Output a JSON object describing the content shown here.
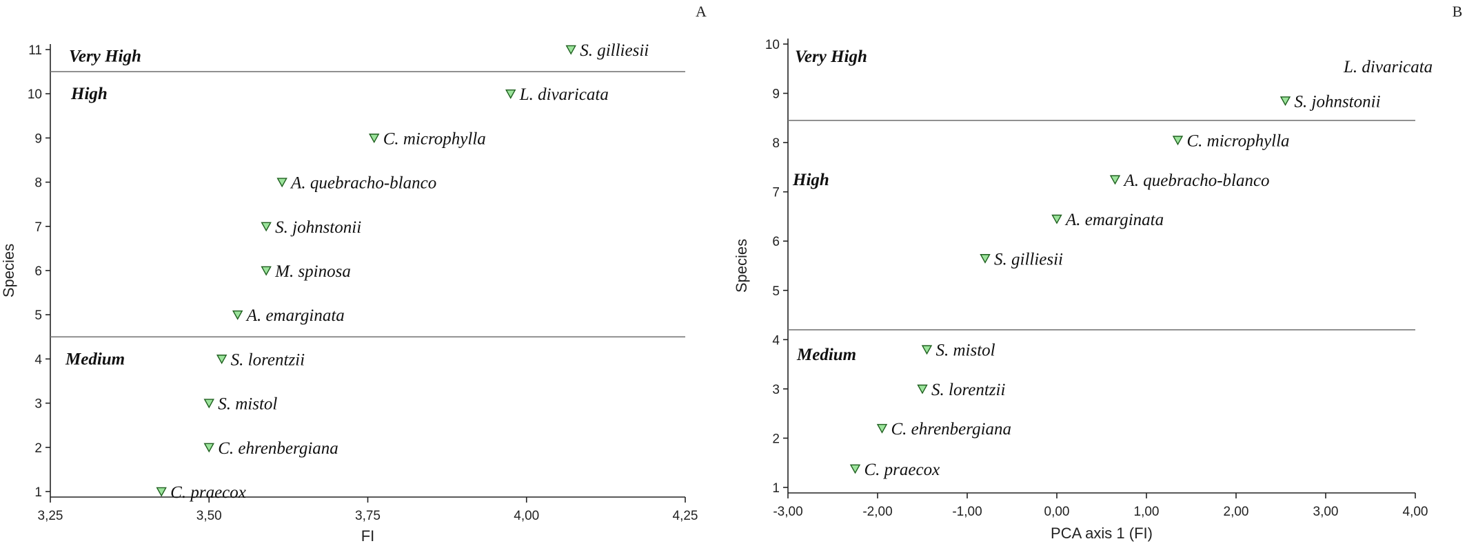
{
  "chart_data": [
    {
      "type": "scatter",
      "panel_label": "A",
      "xlabel": "FI",
      "ylabel": "Species",
      "xlim": [
        3.25,
        4.25
      ],
      "ylim": [
        1,
        11
      ],
      "xticks": [
        3.25,
        3.5,
        3.75,
        4.0,
        4.25
      ],
      "xtick_labels": [
        "3,25",
        "3,50",
        "3,75",
        "4,00",
        "4,25"
      ],
      "yticks": [
        1,
        2,
        3,
        4,
        5,
        6,
        7,
        8,
        9,
        10,
        11
      ],
      "ytick_labels": [
        "1",
        "2",
        "3",
        "4",
        "5",
        "6",
        "7",
        "8",
        "9",
        "10",
        "11"
      ],
      "grid": false,
      "thresholds": [
        10.5,
        4.5
      ],
      "zones": [
        {
          "label": "Very High",
          "y": 10.85
        },
        {
          "label": "High",
          "y": 10.0
        },
        {
          "label": "Medium",
          "y": 4.0
        }
      ],
      "points": [
        {
          "label": "S. gilliesii",
          "x": 4.07,
          "y": 11.0
        },
        {
          "label": "L. divaricata",
          "x": 3.975,
          "y": 10.0
        },
        {
          "label": "C. microphylla",
          "x": 3.76,
          "y": 9.0
        },
        {
          "label": "A. quebracho-blanco",
          "x": 3.615,
          "y": 8.0
        },
        {
          "label": "S. johnstonii",
          "x": 3.59,
          "y": 7.0
        },
        {
          "label": "M. spinosa",
          "x": 3.59,
          "y": 6.0
        },
        {
          "label": "A. emarginata",
          "x": 3.545,
          "y": 5.0
        },
        {
          "label": "S. lorentzii",
          "x": 3.52,
          "y": 4.0
        },
        {
          "label": "S. mistol",
          "x": 3.5,
          "y": 3.0
        },
        {
          "label": "C. ehrenbergiana",
          "x": 3.5,
          "y": 2.0
        },
        {
          "label": "C. praecox",
          "x": 3.425,
          "y": 1.0
        }
      ]
    },
    {
      "type": "scatter",
      "panel_label": "B",
      "xlabel": "PCA axis 1 (FI)",
      "ylabel": "Species",
      "xlim": [
        -3.0,
        4.0
      ],
      "ylim": [
        1,
        10
      ],
      "xticks": [
        -3,
        -2,
        -1,
        0,
        1,
        2,
        3,
        4
      ],
      "xtick_labels": [
        "-3,00",
        "-2,00",
        "-1,00",
        "0,00",
        "1,00",
        "2,00",
        "3,00",
        "4,00"
      ],
      "yticks": [
        1,
        2,
        3,
        4,
        5,
        6,
        7,
        8,
        9,
        10
      ],
      "ytick_labels": [
        "1",
        "2",
        "3",
        "4",
        "5",
        "6",
        "7",
        "8",
        "9",
        "10"
      ],
      "grid": false,
      "thresholds": [
        8.45,
        4.2
      ],
      "zones": [
        {
          "label": "Very High",
          "y": 9.75
        },
        {
          "label": "High",
          "y": 7.25
        },
        {
          "label": "Medium",
          "y": 3.7
        }
      ],
      "points": [
        {
          "label": "L. divaricata",
          "x": 3.1,
          "y": 9.55,
          "marker": false
        },
        {
          "label": "S. johnstonii",
          "x": 2.55,
          "y": 8.85
        },
        {
          "label": "C. microphylla",
          "x": 1.35,
          "y": 8.05
        },
        {
          "label": "A. quebracho-blanco",
          "x": 0.65,
          "y": 7.25
        },
        {
          "label": "A. emarginata",
          "x": 0.0,
          "y": 6.45
        },
        {
          "label": "S. gilliesii",
          "x": -0.8,
          "y": 5.65
        },
        {
          "label": "S. mistol",
          "x": -1.45,
          "y": 3.8
        },
        {
          "label": "S. lorentzii",
          "x": -1.5,
          "y": 3.0
        },
        {
          "label": "C. ehrenbergiana",
          "x": -1.95,
          "y": 2.2
        },
        {
          "label": "C. praecox",
          "x": -2.25,
          "y": 1.38
        }
      ]
    }
  ]
}
